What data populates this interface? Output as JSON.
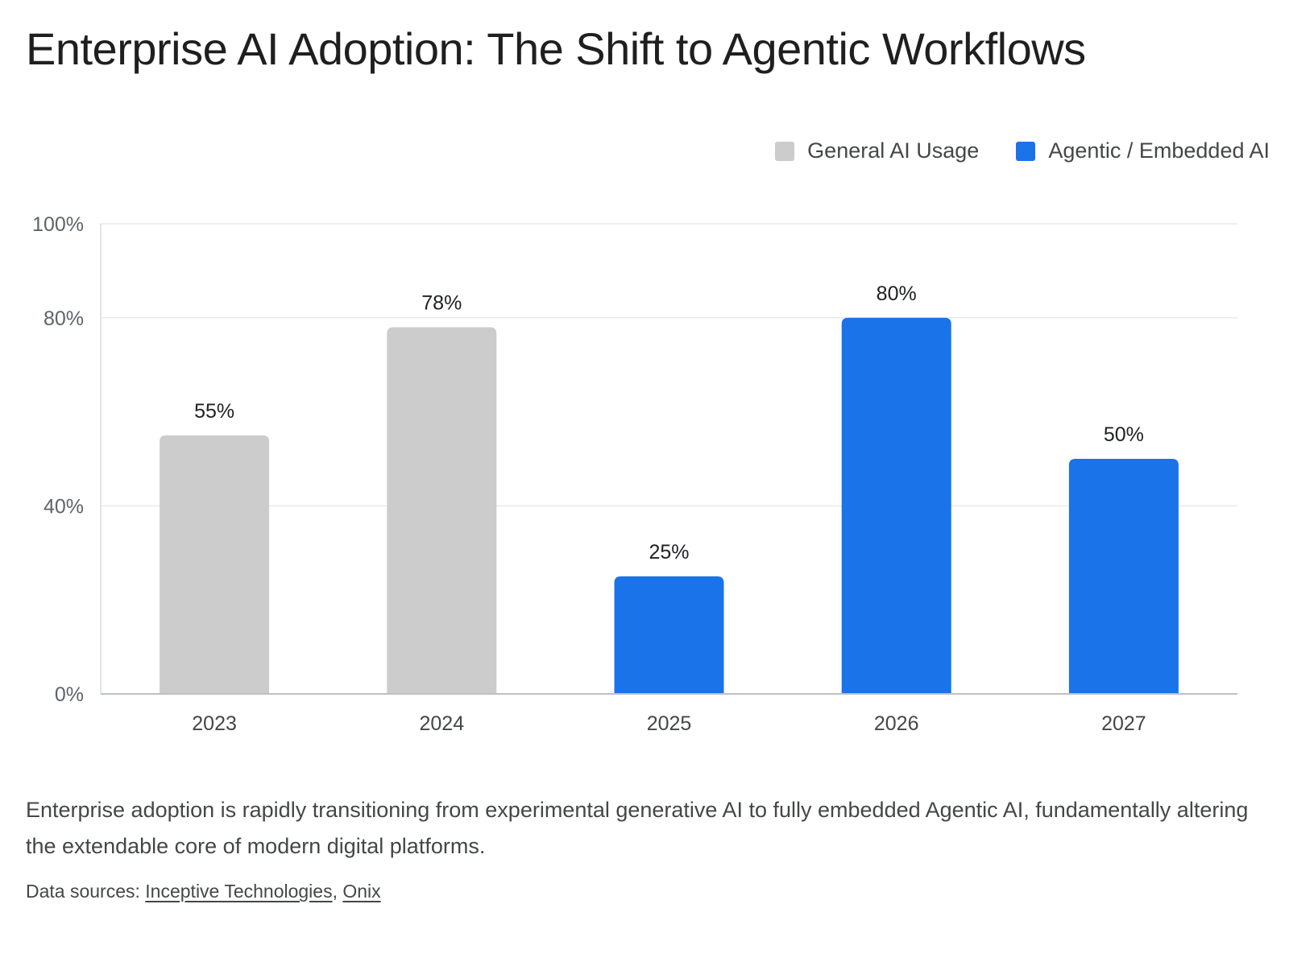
{
  "title": "Enterprise AI Adoption: The Shift to Agentic Workflows",
  "legend": [
    {
      "label": "General AI Usage",
      "color": "#cccccc"
    },
    {
      "label": "Agentic / Embedded AI",
      "color": "#1a73e8"
    }
  ],
  "chart_data": {
    "type": "bar",
    "title": "Enterprise AI Adoption: The Shift to Agentic Workflows",
    "xlabel": "",
    "ylabel": "",
    "categories": [
      "2023",
      "2024",
      "2025",
      "2026",
      "2027"
    ],
    "series": [
      {
        "name": "General AI Usage",
        "color": "#cccccc",
        "values": [
          55,
          78,
          null,
          null,
          null
        ]
      },
      {
        "name": "Agentic / Embedded AI",
        "color": "#1a73e8",
        "values": [
          null,
          null,
          25,
          80,
          50
        ]
      }
    ],
    "data_labels": [
      "55%",
      "78%",
      "25%",
      "80%",
      "50%"
    ],
    "ylim": [
      0,
      100
    ],
    "yticks": [
      0,
      40,
      80,
      100
    ],
    "ytick_labels": [
      "0%",
      "40%",
      "80%",
      "100%"
    ],
    "grid": true,
    "legend_position": "top-right"
  },
  "caption": "Enterprise adoption is rapidly transitioning from experimental generative AI to fully embedded Agentic AI, fundamentally altering the extendable core of modern digital platforms.",
  "sources": {
    "prefix": "Data sources: ",
    "links": [
      "Inceptive Technologies",
      "Onix"
    ],
    "separator": ", "
  }
}
